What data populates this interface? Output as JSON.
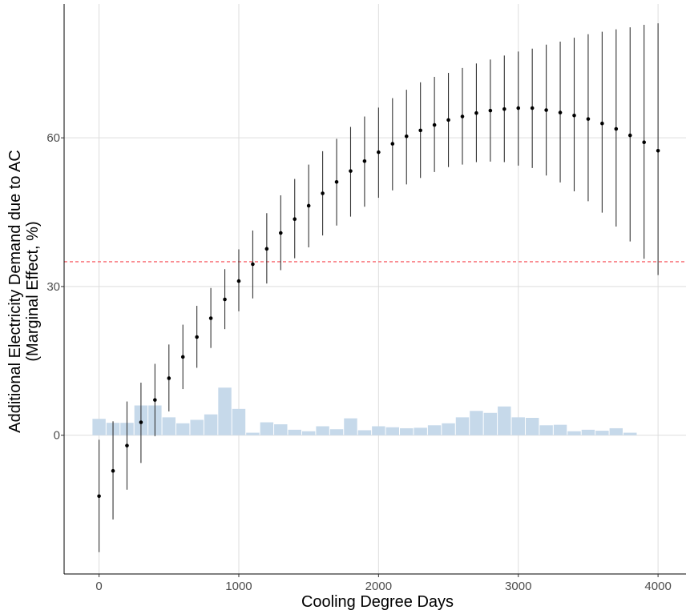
{
  "chart_data": {
    "type": "scatter",
    "xlabel": "Cooling Degree Days",
    "ylabel_line1": "Additional Electricity Demand due to AC",
    "ylabel_line2": "(Marginal Effect, %)",
    "xlim": [
      -250,
      4200
    ],
    "ylim": [
      -28,
      87
    ],
    "x_ticks": [
      0,
      1000,
      2000,
      3000,
      4000
    ],
    "y_ticks": [
      0,
      30,
      60
    ],
    "grid": true,
    "reference_line": {
      "y": 35,
      "color": "#f8666d",
      "style": "dashed"
    },
    "colors": {
      "points": "#000000",
      "error_bars": "#333333",
      "histogram": "#c6d9ea",
      "grid": "#dddddd"
    },
    "series": [
      {
        "type": "point_errorbar",
        "x": [
          0,
          100,
          200,
          300,
          400,
          500,
          600,
          700,
          800,
          900,
          1000,
          1100,
          1200,
          1300,
          1400,
          1500,
          1600,
          1700,
          1800,
          1900,
          2000,
          2100,
          2200,
          2300,
          2400,
          2500,
          2600,
          2700,
          2800,
          2900,
          3000,
          3100,
          3200,
          3300,
          3400,
          3500,
          3600,
          3700,
          3800,
          3900,
          4000
        ],
        "y": [
          -12.3,
          -7.2,
          -2.1,
          2.6,
          7.1,
          11.5,
          15.8,
          19.8,
          23.6,
          27.4,
          31.1,
          34.5,
          37.6,
          40.8,
          43.6,
          46.3,
          48.8,
          51.1,
          53.3,
          55.3,
          57.1,
          58.8,
          60.3,
          61.5,
          62.6,
          63.6,
          64.3,
          65.0,
          65.5,
          65.8,
          66.0,
          66.0,
          65.6,
          65.1,
          64.5,
          63.8,
          62.9,
          61.8,
          60.5,
          59.1,
          57.4
        ],
        "ymin": [
          -23.6,
          -17.0,
          -11.0,
          -5.6,
          -0.2,
          4.8,
          9.3,
          13.6,
          17.6,
          21.4,
          25.0,
          27.6,
          30.6,
          33.3,
          35.7,
          37.9,
          40.3,
          42.3,
          44.1,
          46.1,
          47.9,
          49.4,
          50.6,
          51.9,
          53.1,
          54.1,
          54.6,
          55.1,
          55.2,
          55.1,
          54.4,
          53.9,
          52.4,
          51.0,
          49.2,
          47.2,
          44.9,
          42.1,
          39.1,
          35.6,
          32.3
        ],
        "ymax": [
          -0.9,
          2.8,
          6.8,
          10.6,
          14.4,
          18.3,
          22.3,
          26.1,
          29.7,
          33.5,
          37.5,
          41.3,
          44.8,
          48.4,
          51.7,
          54.6,
          57.3,
          59.8,
          62.2,
          64.3,
          66.1,
          68.0,
          69.7,
          71.2,
          72.3,
          73.1,
          74.1,
          75.0,
          75.8,
          76.6,
          77.4,
          78.0,
          78.8,
          79.4,
          80.2,
          80.9,
          81.4,
          81.9,
          82.3,
          82.8,
          83.1
        ]
      },
      {
        "type": "histogram",
        "bin_width": 100,
        "x": [
          0,
          100,
          200,
          300,
          400,
          500,
          600,
          700,
          800,
          900,
          1000,
          1100,
          1200,
          1300,
          1400,
          1500,
          1600,
          1700,
          1800,
          1900,
          2000,
          2100,
          2200,
          2300,
          2400,
          2500,
          2600,
          2700,
          2800,
          2900,
          3000,
          3100,
          3200,
          3300,
          3400,
          3500,
          3600,
          3700,
          3800
        ],
        "values": [
          3.3,
          2.5,
          2.5,
          6.0,
          6.0,
          3.6,
          2.4,
          3.1,
          4.2,
          9.6,
          5.3,
          0.5,
          2.6,
          2.2,
          1.1,
          0.8,
          1.8,
          1.2,
          3.4,
          1.0,
          1.8,
          1.6,
          1.4,
          1.5,
          2.0,
          2.4,
          3.6,
          4.9,
          4.5,
          5.8,
          3.6,
          3.5,
          2.0,
          2.1,
          0.8,
          1.1,
          0.9,
          1.4,
          0.5
        ]
      }
    ]
  }
}
